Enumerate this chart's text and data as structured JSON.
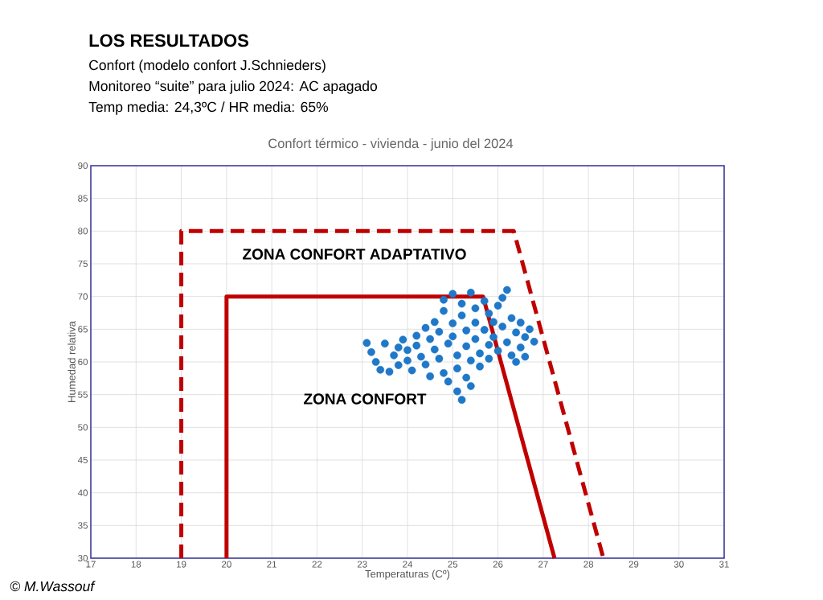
{
  "chart_data": {
    "type": "scatter",
    "title": "LOS RESULTADOS",
    "subtitle": "Confort térmico - vivienda - junio del 2024",
    "xlabel": "Temperaturas (Cº)",
    "ylabel": "Humedad relativa",
    "annotations": [
      "Confort (modelo confort J.Schnieders)",
      "Monitoreo “suite” para julio 2024: AC apagado",
      "Temp media: 24,3ºC / HR media: 65%",
      "ZONA CONFORT ADAPTATIVO",
      "ZONA CONFORT",
      "© M.Wassouf"
    ],
    "xlim": [
      17,
      31
    ],
    "ylim": [
      30,
      90
    ],
    "xticks": [
      17,
      18,
      19,
      20,
      21,
      22,
      23,
      24,
      25,
      26,
      27,
      28,
      29,
      30,
      31
    ],
    "yticks": [
      30,
      35,
      40,
      45,
      50,
      55,
      60,
      65,
      70,
      75,
      80,
      85,
      90
    ],
    "grid": true,
    "series": [
      {
        "color": "#1f78c8",
        "marker": "circle",
        "x": [
          23.1,
          23.2,
          23.3,
          23.4,
          23.6,
          23.5,
          23.7,
          23.8,
          23.9,
          24.0,
          24.0,
          24.2,
          24.2,
          24.3,
          24.4,
          24.4,
          24.5,
          24.6,
          24.6,
          24.7,
          24.7,
          24.8,
          24.8,
          24.8,
          24.9,
          24.9,
          25.0,
          25.0,
          25.0,
          25.1,
          25.1,
          25.1,
          25.2,
          25.2,
          25.2,
          25.3,
          25.3,
          25.3,
          25.4,
          25.4,
          25.4,
          25.5,
          25.5,
          25.5,
          25.6,
          25.6,
          25.7,
          25.7,
          25.8,
          25.8,
          25.8,
          25.9,
          25.9,
          26.0,
          26.0,
          26.1,
          26.1,
          26.2,
          26.2,
          26.3,
          26.3,
          26.4,
          26.4,
          26.5,
          26.5,
          26.6,
          26.6,
          26.7,
          26.8,
          24.1,
          23.8,
          24.5
        ],
        "values": [
          62.9,
          61.5,
          60.0,
          58.8,
          58.5,
          62.8,
          61.0,
          59.5,
          63.4,
          61.8,
          60.2,
          64.0,
          62.5,
          60.8,
          59.6,
          65.2,
          63.5,
          61.9,
          66.1,
          64.6,
          60.5,
          58.3,
          69.5,
          67.8,
          62.8,
          57.0,
          70.4,
          65.9,
          63.9,
          61.0,
          59.0,
          55.5,
          54.2,
          68.9,
          67.1,
          64.8,
          62.4,
          57.6,
          70.6,
          60.2,
          56.3,
          68.2,
          66.0,
          63.5,
          61.3,
          59.3,
          69.3,
          64.9,
          67.4,
          62.6,
          60.5,
          66.1,
          63.8,
          68.6,
          61.7,
          65.4,
          69.8,
          71.0,
          63.0,
          66.7,
          61.0,
          60.0,
          64.5,
          66.0,
          62.2,
          63.8,
          60.8,
          65.0,
          63.1,
          58.7,
          62.2,
          57.8
        ]
      },
      {
        "type": "line",
        "color": "#c00000",
        "line_style": "dashed",
        "marker": "none",
        "x": [
          19,
          19,
          26.35,
          28.33
        ],
        "values": [
          30,
          80,
          80,
          30
        ]
      },
      {
        "type": "line",
        "color": "#c00000",
        "line_style": "solid",
        "marker": "none",
        "x": [
          20,
          20,
          25.67,
          27.25
        ],
        "values": [
          30,
          70,
          70,
          30
        ]
      }
    ]
  }
}
